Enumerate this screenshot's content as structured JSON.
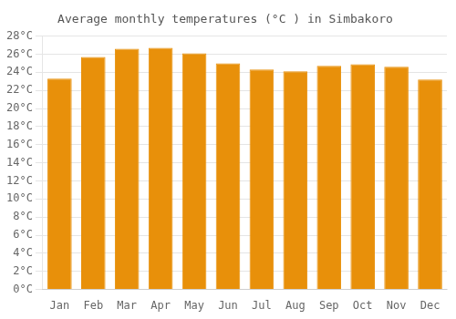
{
  "chart_data": {
    "type": "bar",
    "title": "Average monthly temperatures (°C ) in Simbakoro",
    "categories": [
      "Jan",
      "Feb",
      "Mar",
      "Apr",
      "May",
      "Jun",
      "Jul",
      "Aug",
      "Sep",
      "Oct",
      "Nov",
      "Dec"
    ],
    "values": [
      23.3,
      25.7,
      26.6,
      26.7,
      26.1,
      25.0,
      24.3,
      24.1,
      24.7,
      24.9,
      24.6,
      23.2
    ],
    "color": "#E8900A",
    "ylim": [
      0,
      28
    ],
    "yticks": [
      {
        "value": 0,
        "label": "0°C"
      },
      {
        "value": 2,
        "label": "2°C"
      },
      {
        "value": 4,
        "label": "4°C"
      },
      {
        "value": 6,
        "label": "6°C"
      },
      {
        "value": 8,
        "label": "8°C"
      },
      {
        "value": 10,
        "label": "10°C"
      },
      {
        "value": 12,
        "label": "12°C"
      },
      {
        "value": 14,
        "label": "14°C"
      },
      {
        "value": 16,
        "label": "16°C"
      },
      {
        "value": 18,
        "label": "18°C"
      },
      {
        "value": 20,
        "label": "20°C"
      },
      {
        "value": 22,
        "label": "22°C"
      },
      {
        "value": 24,
        "label": "24°C"
      },
      {
        "value": 26,
        "label": "26°C"
      },
      {
        "value": 28,
        "label": "28°C"
      }
    ],
    "grid": true
  }
}
